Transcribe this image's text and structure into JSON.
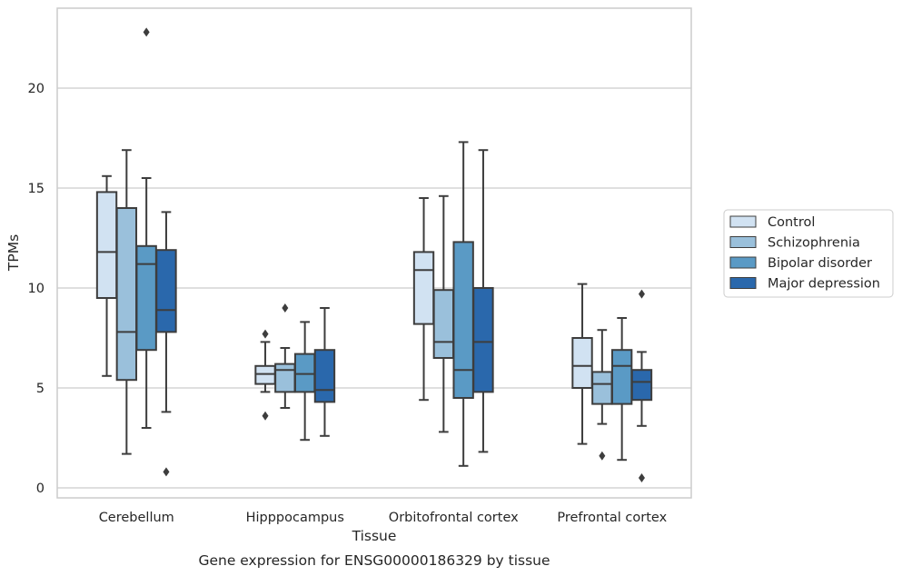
{
  "chart_data": {
    "type": "box",
    "title": "",
    "caption": "Gene expression for ENSG00000186329 by tissue",
    "xlabel": "Tissue",
    "ylabel": "TPMs",
    "ylim": [
      -0.5,
      24.0
    ],
    "yticks": [
      0,
      5,
      10,
      15,
      20
    ],
    "grid": "horizontal",
    "legend_position": "right",
    "categories": [
      "Cerebellum",
      "Hipppocampus",
      "Orbitofrontal cortex",
      "Prefrontal cortex"
    ],
    "series": [
      {
        "name": "Control",
        "color": "#d1e2f2",
        "boxes": [
          {
            "whisker_low": 5.6,
            "q1": 9.5,
            "median": 11.8,
            "q3": 14.8,
            "whisker_high": 15.6,
            "outliers": []
          },
          {
            "whisker_low": 4.8,
            "q1": 5.2,
            "median": 5.7,
            "q3": 6.1,
            "whisker_high": 7.3,
            "outliers": [
              7.7,
              3.6
            ]
          },
          {
            "whisker_low": 4.4,
            "q1": 8.2,
            "median": 10.9,
            "q3": 11.8,
            "whisker_high": 14.5,
            "outliers": []
          },
          {
            "whisker_low": 2.2,
            "q1": 5.0,
            "median": 6.1,
            "q3": 7.5,
            "whisker_high": 10.2,
            "outliers": []
          }
        ]
      },
      {
        "name": "Schizophrenia",
        "color": "#9ac0db",
        "boxes": [
          {
            "whisker_low": 1.7,
            "q1": 5.4,
            "median": 7.8,
            "q3": 14.0,
            "whisker_high": 16.9,
            "outliers": []
          },
          {
            "whisker_low": 4.0,
            "q1": 4.8,
            "median": 5.9,
            "q3": 6.2,
            "whisker_high": 7.0,
            "outliers": [
              9.0
            ]
          },
          {
            "whisker_low": 2.8,
            "q1": 6.5,
            "median": 7.3,
            "q3": 9.9,
            "whisker_high": 14.6,
            "outliers": []
          },
          {
            "whisker_low": 3.2,
            "q1": 4.2,
            "median": 5.2,
            "q3": 5.8,
            "whisker_high": 7.9,
            "outliers": [
              1.6
            ]
          }
        ]
      },
      {
        "name": "Bipolar disorder",
        "color": "#5a9ac5",
        "boxes": [
          {
            "whisker_low": 3.0,
            "q1": 6.9,
            "median": 11.2,
            "q3": 12.1,
            "whisker_high": 15.5,
            "outliers": [
              22.8
            ]
          },
          {
            "whisker_low": 2.4,
            "q1": 4.8,
            "median": 5.7,
            "q3": 6.7,
            "whisker_high": 8.3,
            "outliers": []
          },
          {
            "whisker_low": 1.1,
            "q1": 4.5,
            "median": 5.9,
            "q3": 12.3,
            "whisker_high": 17.3,
            "outliers": []
          },
          {
            "whisker_low": 1.4,
            "q1": 4.2,
            "median": 6.1,
            "q3": 6.9,
            "whisker_high": 8.5,
            "outliers": []
          }
        ]
      },
      {
        "name": "Major depression",
        "color": "#2a68ac",
        "boxes": [
          {
            "whisker_low": 3.8,
            "q1": 7.8,
            "median": 8.9,
            "q3": 11.9,
            "whisker_high": 13.8,
            "outliers": [
              0.8
            ]
          },
          {
            "whisker_low": 2.6,
            "q1": 4.3,
            "median": 4.9,
            "q3": 6.9,
            "whisker_high": 9.0,
            "outliers": []
          },
          {
            "whisker_low": 1.8,
            "q1": 4.8,
            "median": 7.3,
            "q3": 10.0,
            "whisker_high": 16.9,
            "outliers": []
          },
          {
            "whisker_low": 3.1,
            "q1": 4.4,
            "median": 5.3,
            "q3": 5.9,
            "whisker_high": 6.8,
            "outliers": [
              9.7,
              0.5
            ]
          }
        ]
      }
    ]
  }
}
